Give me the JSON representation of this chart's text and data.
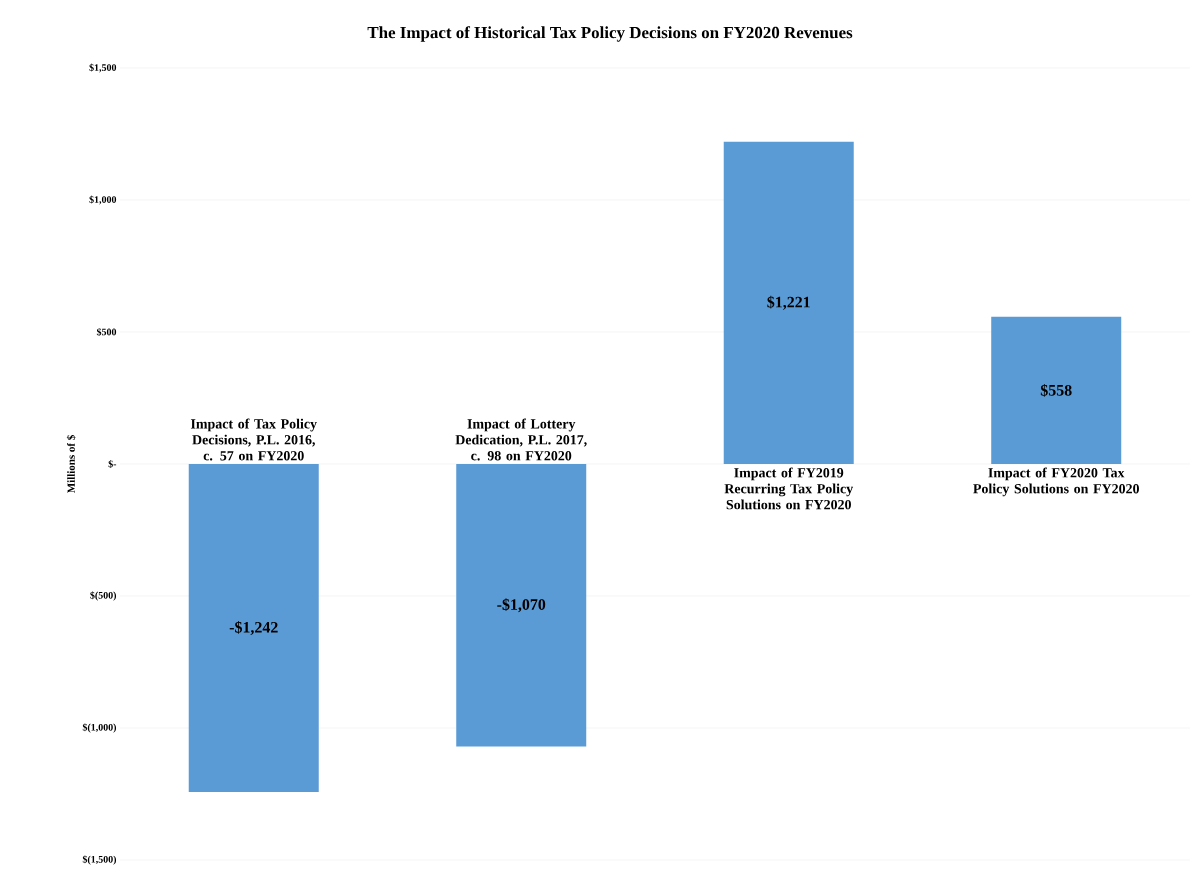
{
  "chart_data": {
    "type": "bar",
    "title": "The Impact of Historical Tax Policy Decisions on FY2020 Revenues",
    "ylabel": "Millions of $",
    "categories": [
      "Impact of Tax Policy Decisions, P.L. 2016, c. 57 on FY2020",
      "Impact of Lottery Dedication, P.L. 2017, c. 98 on FY2020",
      "Impact of FY2019 Recurring Tax Policy Solutions on FY2020",
      "Impact of FY2020 Tax Policy Solutions on FY2020"
    ],
    "values": [
      -1242,
      -1070,
      1221,
      558
    ],
    "value_labels": [
      "-$1,242",
      "-$1,070",
      "$1,221",
      "$558"
    ],
    "color": "#5b9bd5",
    "ylim": [
      -1500,
      1500
    ],
    "yticks": [
      {
        "value": 1500,
        "label": "$1,500"
      },
      {
        "value": 1000,
        "label": "$1,000"
      },
      {
        "value": 500,
        "label": "$500"
      },
      {
        "value": 0,
        "label": "$-"
      },
      {
        "value": -500,
        "label": "$(500)"
      },
      {
        "value": -1000,
        "label": "$(1,000)"
      },
      {
        "value": -1500,
        "label": "$(1,500)"
      }
    ],
    "grid": "y"
  }
}
